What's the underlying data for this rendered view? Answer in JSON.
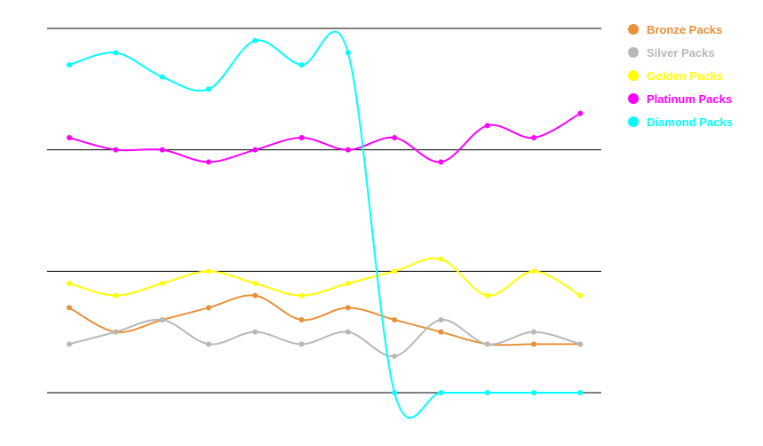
{
  "chart_data": {
    "type": "line",
    "title": "",
    "xlabel": "",
    "ylabel": "",
    "x": [
      1,
      2,
      3,
      4,
      5,
      6,
      7,
      8,
      9,
      10,
      11,
      12
    ],
    "ylim": [
      0,
      30
    ],
    "gridlines": [
      0,
      10,
      20,
      30
    ],
    "grid": true,
    "legend_position": "right",
    "smooth": true,
    "series": [
      {
        "name": "Bronze Packs",
        "color": "#e8913a",
        "values": [
          7,
          5,
          6,
          7,
          8,
          6,
          7,
          6,
          5,
          4,
          4,
          4
        ]
      },
      {
        "name": "Silver Packs",
        "color": "#b8b8b8",
        "values": [
          4,
          5,
          6,
          4,
          5,
          4,
          5,
          3,
          6,
          4,
          5,
          4
        ]
      },
      {
        "name": "Golden Packs",
        "color": "#ffff00",
        "values": [
          9,
          8,
          9,
          10,
          9,
          8,
          9,
          10,
          11,
          8,
          10,
          8
        ]
      },
      {
        "name": "Platinum Packs",
        "color": "#ff00ff",
        "values": [
          21,
          20,
          20,
          19,
          20,
          21,
          20,
          21,
          19,
          22,
          21,
          23
        ]
      },
      {
        "name": "Diamond Packs",
        "color": "#00ffff",
        "values": [
          27,
          28,
          26,
          25,
          29,
          27,
          28,
          0,
          0,
          0,
          0,
          0
        ]
      }
    ]
  }
}
